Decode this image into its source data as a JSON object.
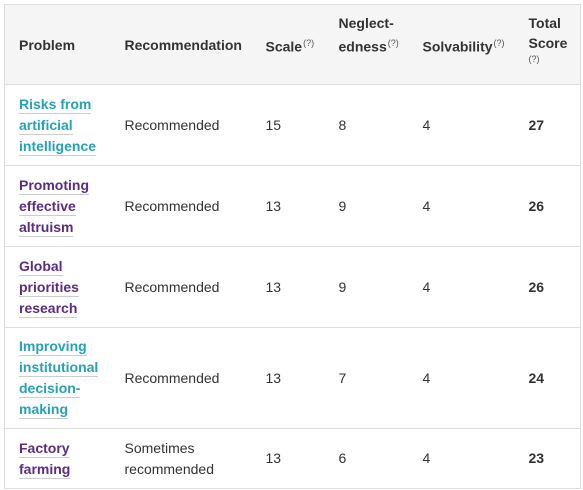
{
  "header": {
    "problem": "Problem",
    "recommendation": "Recommendation",
    "scale": "Scale",
    "neglectedness_1": "Neglect-",
    "neglectedness_2": "edness",
    "solvability": "Solvability",
    "total_1": "Total",
    "total_2": "Score",
    "help_marker": "(?)"
  },
  "colors": {
    "teal_link": "#26a2b5",
    "purple_link": "#5a2d82",
    "header_bg": "#f5f5f5"
  },
  "rows": [
    {
      "problem": "Risks from artificial intelligence",
      "link_color": "teal",
      "recommendation": "Recommended",
      "scale": "15",
      "neglectedness": "8",
      "solvability": "4",
      "total": "27"
    },
    {
      "problem": "Promoting effective altruism",
      "link_color": "purple",
      "recommendation": "Recommended",
      "scale": "13",
      "neglectedness": "9",
      "solvability": "4",
      "total": "26"
    },
    {
      "problem": "Global priorities research",
      "link_color": "purple",
      "recommendation": "Recommended",
      "scale": "13",
      "neglectedness": "9",
      "solvability": "4",
      "total": "26"
    },
    {
      "problem": "Improving institutional decision-making",
      "link_color": "teal",
      "recommendation": "Recommended",
      "scale": "13",
      "neglectedness": "7",
      "solvability": "4",
      "total": "24"
    },
    {
      "problem": "Factory farming",
      "link_color": "purple",
      "recommendation": "Sometimes recommended",
      "scale": "13",
      "neglectedness": "6",
      "solvability": "4",
      "total": "23"
    }
  ]
}
